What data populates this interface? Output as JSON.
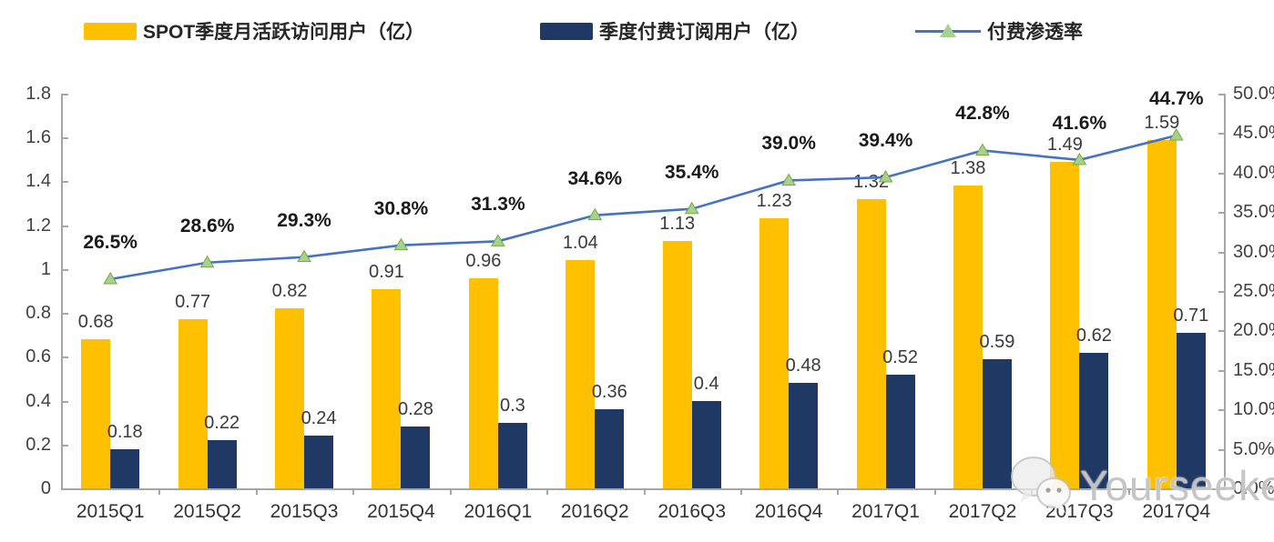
{
  "chart_data": {
    "type": "combo-bar-line",
    "categories": [
      "2015Q1",
      "2015Q2",
      "2015Q3",
      "2015Q4",
      "2016Q1",
      "2016Q2",
      "2016Q3",
      "2016Q4",
      "2017Q1",
      "2017Q2",
      "2017Q3",
      "2017Q4"
    ],
    "series": [
      {
        "name": "SPOT季度月活跃访问用户（亿）",
        "chart_type": "bar",
        "color": "#FFC000",
        "axis": "left",
        "values": [
          0.68,
          0.77,
          0.82,
          0.91,
          0.96,
          1.04,
          1.13,
          1.23,
          1.32,
          1.38,
          1.49,
          1.59
        ]
      },
      {
        "name": "季度付费订阅用户（亿）",
        "chart_type": "bar",
        "color": "#1F3864",
        "axis": "left",
        "values": [
          0.18,
          0.22,
          0.24,
          0.28,
          0.3,
          0.36,
          0.4,
          0.48,
          0.52,
          0.59,
          0.62,
          0.71
        ]
      },
      {
        "name": "付费渗透率",
        "chart_type": "line",
        "color": "#4472C4",
        "marker": "triangle",
        "marker_fill": "#A9D18E",
        "marker_stroke": "#76A741",
        "axis": "right",
        "values_percent": [
          26.5,
          28.6,
          29.3,
          30.8,
          31.3,
          34.6,
          35.4,
          39.0,
          39.4,
          42.8,
          41.6,
          44.7
        ]
      }
    ],
    "left_axis": {
      "min": 0,
      "max": 1.8,
      "step": 0.2,
      "tick_labels": [
        "0",
        "0.2",
        "0.4",
        "0.6",
        "0.8",
        "1",
        "1.2",
        "1.4",
        "1.6",
        "1.8"
      ]
    },
    "right_axis": {
      "min": 0,
      "max": 50,
      "step": 5,
      "tick_labels": [
        "0.0%",
        "5.0%",
        "10.0%",
        "15.0%",
        "20.0%",
        "25.0%",
        "30.0%",
        "35.0%",
        "40.0%",
        "45.0%",
        "50.0%"
      ]
    },
    "legend_position": "top",
    "grid": false,
    "axis_color": "#A6A6A6"
  },
  "legend": {
    "items": [
      {
        "label": "SPOT季度月活跃访问用户（亿）",
        "swatch_color": "#FFC000"
      },
      {
        "label": "季度付费订阅用户（亿）",
        "swatch_color": "#1F3864"
      },
      {
        "label": "付费渗透率",
        "line_color": "#4472C4",
        "marker_color": "#A9D18E"
      }
    ]
  },
  "watermark": {
    "text": "Yourseeker",
    "icon": "wechat-bubbles-icon"
  }
}
